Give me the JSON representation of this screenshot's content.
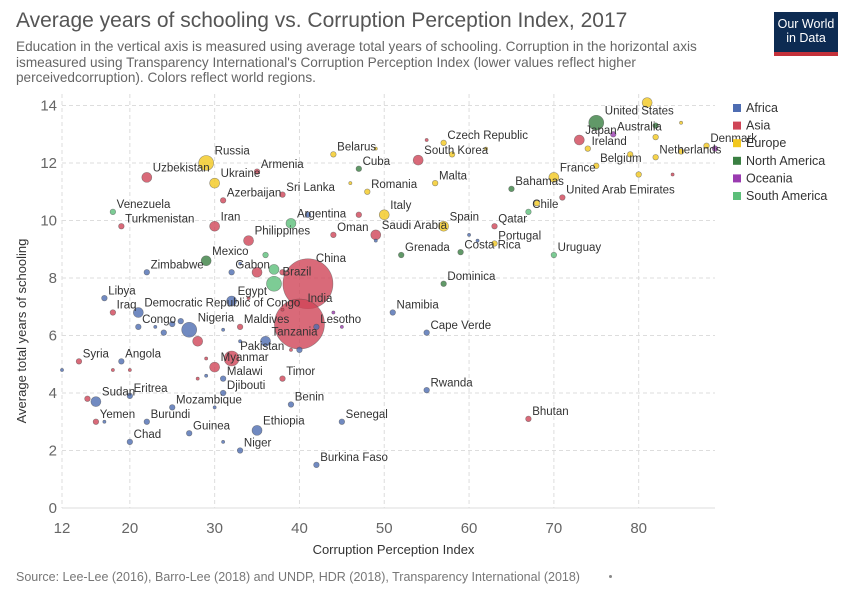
{
  "header": {
    "title": "Average years of schooling vs. Corruption Perception Index, 2017",
    "subtitle": "Education in the vertical axis is measured using average total years of schooling. Corruption in the horizontal axis ismeasured using Transparency International's Corruption Perception Index (lower values reflect higher perceivedcorruption). Colors reflect world regions.",
    "logo_line1": "Our World",
    "logo_line2": "in Data"
  },
  "footer": {
    "source": "Source: Lee-Lee (2016), Barro-Lee (2018) and UNDP, HDR (2018), Transparency International (2018)"
  },
  "colors": {
    "Africa": "#4e6db2",
    "Asia": "#cf4557",
    "Europe": "#f2c81f",
    "North America": "#3a7f42",
    "Oceania": "#9a3bb0",
    "South America": "#5cbf7a",
    "grid": "#dddddd",
    "accent_logo_bg": "#0d2b52",
    "accent_logo_bar": "#c4313a"
  },
  "chart_data": {
    "type": "scatter",
    "title": "Average years of schooling vs. Corruption Perception Index, 2017",
    "xlabel": "Corruption Perception Index",
    "ylabel": "Average total years of schooling",
    "xlim": [
      12,
      89
    ],
    "ylim": [
      0,
      14.4
    ],
    "xticks": [
      12,
      20,
      30,
      40,
      50,
      60,
      70,
      80
    ],
    "yticks": [
      0,
      2,
      4,
      6,
      8,
      10,
      12,
      14
    ],
    "grid": true,
    "legend_position": "right",
    "legend": [
      "Africa",
      "Asia",
      "Europe",
      "North America",
      "Oceania",
      "South America"
    ],
    "points": [
      {
        "label": "China",
        "x": 41,
        "y": 7.8,
        "region": "Asia",
        "size": "huge"
      },
      {
        "label": "India",
        "x": 40,
        "y": 6.4,
        "region": "Asia",
        "size": "huge"
      },
      {
        "label": "United States",
        "x": 75,
        "y": 13.4,
        "region": "North America",
        "size": "large"
      },
      {
        "label": "Japan",
        "x": 73,
        "y": 12.8,
        "region": "Asia",
        "size": "medium"
      },
      {
        "label": "Australia",
        "x": 77,
        "y": 13,
        "region": "Oceania",
        "size": "small"
      },
      {
        "label": "Czech Republic",
        "x": 57,
        "y": 12.7,
        "region": "Europe",
        "size": "small"
      },
      {
        "label": "Ireland",
        "x": 74,
        "y": 12.5,
        "region": "Europe",
        "size": "small"
      },
      {
        "label": "Denmark",
        "x": 88,
        "y": 12.6,
        "region": "Europe",
        "size": "small"
      },
      {
        "label": "Netherlands",
        "x": 82,
        "y": 12.2,
        "region": "Europe",
        "size": "small"
      },
      {
        "label": "South Korea",
        "x": 54,
        "y": 12.1,
        "region": "Asia",
        "size": "medium"
      },
      {
        "label": "Belgium",
        "x": 75,
        "y": 11.9,
        "region": "Europe",
        "size": "small"
      },
      {
        "label": "Russia",
        "x": 29,
        "y": 12,
        "region": "Europe",
        "size": "large"
      },
      {
        "label": "Belarus",
        "x": 44,
        "y": 12.3,
        "region": "Europe",
        "size": "small"
      },
      {
        "label": "Armenia",
        "x": 35,
        "y": 11.7,
        "region": "Asia",
        "size": "small"
      },
      {
        "label": "Cuba",
        "x": 47,
        "y": 11.8,
        "region": "North America",
        "size": "small"
      },
      {
        "label": "Uzbekistan",
        "x": 22,
        "y": 11.5,
        "region": "Asia",
        "size": "medium"
      },
      {
        "label": "Ukraine",
        "x": 30,
        "y": 11.3,
        "region": "Europe",
        "size": "medium"
      },
      {
        "label": "France",
        "x": 70,
        "y": 11.5,
        "region": "Europe",
        "size": "medium"
      },
      {
        "label": "Malta",
        "x": 56,
        "y": 11.3,
        "region": "Europe",
        "size": "small"
      },
      {
        "label": "Bahamas",
        "x": 65,
        "y": 11.1,
        "region": "North America",
        "size": "small"
      },
      {
        "label": "Romania",
        "x": 48,
        "y": 11,
        "region": "Europe",
        "size": "small"
      },
      {
        "label": "Sri Lanka",
        "x": 38,
        "y": 10.9,
        "region": "Asia",
        "size": "small"
      },
      {
        "label": "Azerbaijan",
        "x": 31,
        "y": 10.7,
        "region": "Asia",
        "size": "small"
      },
      {
        "label": "United Arab Emirates",
        "x": 71,
        "y": 10.8,
        "region": "Asia",
        "size": "small"
      },
      {
        "label": "Venezuela",
        "x": 18,
        "y": 10.3,
        "region": "South America",
        "size": "small"
      },
      {
        "label": "Chile",
        "x": 67,
        "y": 10.3,
        "region": "South America",
        "size": "small"
      },
      {
        "label": "Italy",
        "x": 50,
        "y": 10.2,
        "region": "Europe",
        "size": "medium"
      },
      {
        "label": "Argentina",
        "x": 39,
        "y": 9.9,
        "region": "South America",
        "size": "medium"
      },
      {
        "label": "Turkmenistan",
        "x": 19,
        "y": 9.8,
        "region": "Asia",
        "size": "small"
      },
      {
        "label": "Iran",
        "x": 30,
        "y": 9.8,
        "region": "Asia",
        "size": "medium"
      },
      {
        "label": "Spain",
        "x": 57,
        "y": 9.8,
        "region": "Europe",
        "size": "medium"
      },
      {
        "label": "Qatar",
        "x": 63,
        "y": 9.8,
        "region": "Asia",
        "size": "small"
      },
      {
        "label": "Oman",
        "x": 44,
        "y": 9.5,
        "region": "Asia",
        "size": "small"
      },
      {
        "label": "Saudi Arabia",
        "x": 49,
        "y": 9.5,
        "region": "Asia",
        "size": "medium"
      },
      {
        "label": "Philippines",
        "x": 34,
        "y": 9.3,
        "region": "Asia",
        "size": "medium"
      },
      {
        "label": "Portugal",
        "x": 63,
        "y": 9.2,
        "region": "Europe",
        "size": "small"
      },
      {
        "label": "Costa Rica",
        "x": 59,
        "y": 8.9,
        "region": "North America",
        "size": "small"
      },
      {
        "label": "Grenada",
        "x": 52,
        "y": 8.8,
        "region": "North America",
        "size": "small"
      },
      {
        "label": "Uruguay",
        "x": 70,
        "y": 8.8,
        "region": "South America",
        "size": "small"
      },
      {
        "label": "Mexico",
        "x": 29,
        "y": 8.6,
        "region": "North America",
        "size": "medium"
      },
      {
        "label": "Zimbabwe",
        "x": 22,
        "y": 8.2,
        "region": "Africa",
        "size": "small"
      },
      {
        "label": "Gabon",
        "x": 32,
        "y": 8.2,
        "region": "Africa",
        "size": "small"
      },
      {
        "label": "Brazil",
        "x": 37,
        "y": 7.8,
        "region": "South America",
        "size": "large"
      },
      {
        "label": "Dominica",
        "x": 57,
        "y": 7.8,
        "region": "North America",
        "size": "small"
      },
      {
        "label": "Libya",
        "x": 17,
        "y": 7.3,
        "region": "Africa",
        "size": "small"
      },
      {
        "label": "Egypt",
        "x": 32,
        "y": 7.2,
        "region": "Africa",
        "size": "medium"
      },
      {
        "label": "Iraq",
        "x": 18,
        "y": 6.8,
        "region": "Asia",
        "size": "small"
      },
      {
        "label": "Democratic Republic of Congo",
        "x": 21,
        "y": 6.8,
        "region": "Africa",
        "size": "medium"
      },
      {
        "label": "Namibia",
        "x": 51,
        "y": 6.8,
        "region": "Africa",
        "size": "small"
      },
      {
        "label": "Congo",
        "x": 21,
        "y": 6.3,
        "region": "Africa",
        "size": "small"
      },
      {
        "label": "Nigeria",
        "x": 27,
        "y": 6.2,
        "region": "Africa",
        "size": "large"
      },
      {
        "label": "Maldives",
        "x": 33,
        "y": 6.3,
        "region": "Asia",
        "size": "small"
      },
      {
        "label": "Lesotho",
        "x": 42,
        "y": 6.3,
        "region": "Africa",
        "size": "small"
      },
      {
        "label": "Cape Verde",
        "x": 55,
        "y": 6.1,
        "region": "Africa",
        "size": "small"
      },
      {
        "label": "Tanzania",
        "x": 36,
        "y": 5.8,
        "region": "Africa",
        "size": "medium"
      },
      {
        "label": "Pakistan",
        "x": 32,
        "y": 5.2,
        "region": "Asia",
        "size": "large"
      },
      {
        "label": "Syria",
        "x": 14,
        "y": 5.1,
        "region": "Asia",
        "size": "small"
      },
      {
        "label": "Angola",
        "x": 19,
        "y": 5.1,
        "region": "Africa",
        "size": "small"
      },
      {
        "label": "Myanmar",
        "x": 30,
        "y": 4.9,
        "region": "Asia",
        "size": "medium"
      },
      {
        "label": "Malawi",
        "x": 31,
        "y": 4.5,
        "region": "Africa",
        "size": "small"
      },
      {
        "label": "Timor",
        "x": 38,
        "y": 4.5,
        "region": "Asia",
        "size": "small"
      },
      {
        "label": "Djibouti",
        "x": 31,
        "y": 4.0,
        "region": "Africa",
        "size": "small"
      },
      {
        "label": "Rwanda",
        "x": 55,
        "y": 4.1,
        "region": "Africa",
        "size": "small"
      },
      {
        "label": "Eritrea",
        "x": 20,
        "y": 3.9,
        "region": "Africa",
        "size": "small"
      },
      {
        "label": "Sudan",
        "x": 16,
        "y": 3.7,
        "region": "Africa",
        "size": "medium"
      },
      {
        "label": "Mozambique",
        "x": 25,
        "y": 3.5,
        "region": "Africa",
        "size": "small"
      },
      {
        "label": "Benin",
        "x": 39,
        "y": 3.6,
        "region": "Africa",
        "size": "small"
      },
      {
        "label": "Yemen",
        "x": 16,
        "y": 3.0,
        "region": "Asia",
        "size": "small"
      },
      {
        "label": "Burundi",
        "x": 22,
        "y": 3.0,
        "region": "Africa",
        "size": "small"
      },
      {
        "label": "Senegal",
        "x": 45,
        "y": 3.0,
        "region": "Africa",
        "size": "small"
      },
      {
        "label": "Bhutan",
        "x": 67,
        "y": 3.1,
        "region": "Asia",
        "size": "small"
      },
      {
        "label": "Guinea",
        "x": 27,
        "y": 2.6,
        "region": "Africa",
        "size": "small"
      },
      {
        "label": "Ethiopia",
        "x": 35,
        "y": 2.7,
        "region": "Africa",
        "size": "medium"
      },
      {
        "label": "Chad",
        "x": 20,
        "y": 2.3,
        "region": "Africa",
        "size": "small"
      },
      {
        "label": "Niger",
        "x": 33,
        "y": 2.0,
        "region": "Africa",
        "size": "small"
      },
      {
        "label": "Burkina Faso",
        "x": 42,
        "y": 1.5,
        "region": "Africa",
        "size": "small"
      },
      {
        "label": "",
        "x": 12,
        "y": 4.8,
        "region": "Africa",
        "size": "tiny"
      },
      {
        "label": "",
        "x": 15,
        "y": 3.8,
        "region": "Asia",
        "size": "small"
      },
      {
        "label": "",
        "x": 17,
        "y": 3.0,
        "region": "Africa",
        "size": "tiny"
      },
      {
        "label": "",
        "x": 18,
        "y": 4.8,
        "region": "Asia",
        "size": "tiny"
      },
      {
        "label": "",
        "x": 20,
        "y": 4.8,
        "region": "Asia",
        "size": "tiny"
      },
      {
        "label": "",
        "x": 23,
        "y": 6.3,
        "region": "Africa",
        "size": "tiny"
      },
      {
        "label": "",
        "x": 24,
        "y": 6.1,
        "region": "Africa",
        "size": "small"
      },
      {
        "label": "",
        "x": 25,
        "y": 6.4,
        "region": "Africa",
        "size": "small"
      },
      {
        "label": "",
        "x": 26,
        "y": 6.5,
        "region": "Africa",
        "size": "small"
      },
      {
        "label": "",
        "x": 28,
        "y": 5.8,
        "region": "Asia",
        "size": "medium"
      },
      {
        "label": "",
        "x": 28,
        "y": 4.5,
        "region": "Asia",
        "size": "tiny"
      },
      {
        "label": "",
        "x": 29,
        "y": 5.2,
        "region": "Asia",
        "size": "tiny"
      },
      {
        "label": "",
        "x": 29,
        "y": 4.6,
        "region": "Africa",
        "size": "tiny"
      },
      {
        "label": "",
        "x": 30,
        "y": 3.5,
        "region": "Africa",
        "size": "tiny"
      },
      {
        "label": "",
        "x": 31,
        "y": 2.3,
        "region": "Africa",
        "size": "tiny"
      },
      {
        "label": "",
        "x": 31,
        "y": 6.2,
        "region": "Africa",
        "size": "tiny"
      },
      {
        "label": "",
        "x": 33,
        "y": 5.8,
        "region": "Africa",
        "size": "tiny"
      },
      {
        "label": "",
        "x": 33,
        "y": 8.5,
        "region": "Africa",
        "size": "tiny"
      },
      {
        "label": "",
        "x": 34,
        "y": 7.3,
        "region": "Asia",
        "size": "tiny"
      },
      {
        "label": "",
        "x": 35,
        "y": 8.2,
        "region": "Asia",
        "size": "medium"
      },
      {
        "label": "",
        "x": 36,
        "y": 8.8,
        "region": "South America",
        "size": "small"
      },
      {
        "label": "",
        "x": 37,
        "y": 8.3,
        "region": "South America",
        "size": "medium"
      },
      {
        "label": "",
        "x": 38,
        "y": 8.2,
        "region": "Asia",
        "size": "small"
      },
      {
        "label": "",
        "x": 38,
        "y": 6.9,
        "region": "Asia",
        "size": "tiny"
      },
      {
        "label": "",
        "x": 39,
        "y": 5.5,
        "region": "Asia",
        "size": "tiny"
      },
      {
        "label": "",
        "x": 40,
        "y": 5.5,
        "region": "Africa",
        "size": "small"
      },
      {
        "label": "",
        "x": 41,
        "y": 10.2,
        "region": "Africa",
        "size": "small"
      },
      {
        "label": "",
        "x": 44,
        "y": 6.8,
        "region": "Oceania",
        "size": "tiny"
      },
      {
        "label": "",
        "x": 45,
        "y": 6.3,
        "region": "Oceania",
        "size": "tiny"
      },
      {
        "label": "",
        "x": 46,
        "y": 11.3,
        "region": "Europe",
        "size": "tiny"
      },
      {
        "label": "",
        "x": 47,
        "y": 10.2,
        "region": "Asia",
        "size": "small"
      },
      {
        "label": "",
        "x": 49,
        "y": 12.5,
        "region": "Europe",
        "size": "tiny"
      },
      {
        "label": "",
        "x": 49,
        "y": 9.3,
        "region": "Africa",
        "size": "tiny"
      },
      {
        "label": "",
        "x": 55,
        "y": 12.8,
        "region": "Asia",
        "size": "tiny"
      },
      {
        "label": "",
        "x": 58,
        "y": 12.3,
        "region": "Europe",
        "size": "small"
      },
      {
        "label": "",
        "x": 60,
        "y": 9.5,
        "region": "Africa",
        "size": "tiny"
      },
      {
        "label": "",
        "x": 61,
        "y": 9.3,
        "region": "Africa",
        "size": "tiny"
      },
      {
        "label": "",
        "x": 62,
        "y": 12.5,
        "region": "Europe",
        "size": "tiny"
      },
      {
        "label": "",
        "x": 68,
        "y": 10.6,
        "region": "Europe",
        "size": "small"
      },
      {
        "label": "",
        "x": 79,
        "y": 12.3,
        "region": "Europe",
        "size": "small"
      },
      {
        "label": "",
        "x": 80,
        "y": 11.6,
        "region": "Europe",
        "size": "small"
      },
      {
        "label": "",
        "x": 81,
        "y": 14.1,
        "region": "Europe",
        "size": "medium"
      },
      {
        "label": "",
        "x": 82,
        "y": 13.3,
        "region": "North America",
        "size": "small"
      },
      {
        "label": "",
        "x": 82,
        "y": 12.9,
        "region": "Europe",
        "size": "small"
      },
      {
        "label": "",
        "x": 84,
        "y": 11.6,
        "region": "Asia",
        "size": "tiny"
      },
      {
        "label": "",
        "x": 85,
        "y": 13.4,
        "region": "Europe",
        "size": "tiny"
      },
      {
        "label": "",
        "x": 85,
        "y": 12.4,
        "region": "Europe",
        "size": "small"
      },
      {
        "label": "",
        "x": 89,
        "y": 12.5,
        "region": "Oceania",
        "size": "small"
      }
    ]
  }
}
